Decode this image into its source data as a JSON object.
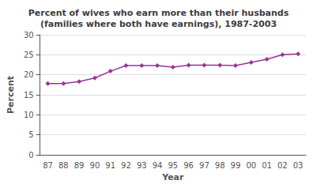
{
  "chart_data": {
    "type": "line",
    "title": "Percent of wives who earn more than their husbands\n(families where both have earnings), 1987-2003",
    "xlabel": "Year",
    "ylabel": "Percent",
    "categories": [
      "87",
      "88",
      "89",
      "90",
      "91",
      "92",
      "93",
      "94",
      "95",
      "96",
      "97",
      "98",
      "99",
      "00",
      "01",
      "02",
      "03"
    ],
    "values": [
      17.8,
      17.8,
      18.3,
      19.2,
      20.9,
      22.3,
      22.3,
      22.3,
      21.9,
      22.4,
      22.4,
      22.4,
      22.3,
      23.1,
      23.9,
      25.0,
      25.2
    ],
    "color": "#993399",
    "marker": "diamond",
    "ylim": [
      0,
      30
    ],
    "yticks": [
      0,
      5,
      10,
      15,
      20,
      25,
      30
    ],
    "grid": true
  }
}
